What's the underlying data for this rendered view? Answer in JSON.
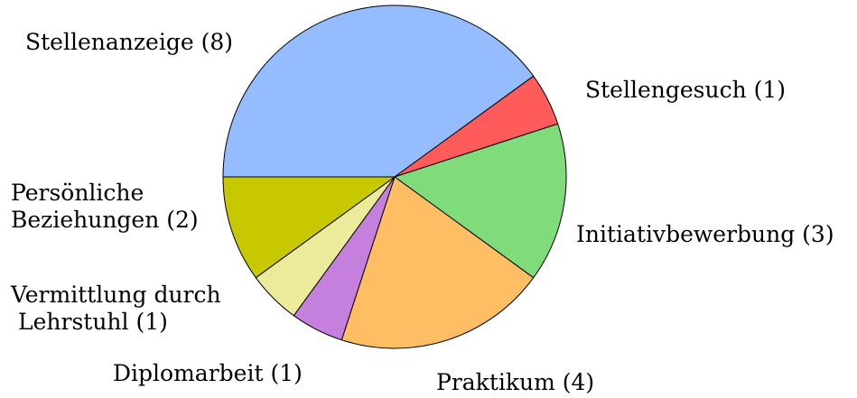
{
  "chart_data": {
    "type": "pie",
    "value_labels": [
      "Stellenanzeige (8)",
      "Stellengesuch (1)",
      "Initiativbewerbung (3)",
      "Praktikum (4)",
      "Diplomarbeit (1)",
      "Vermittlung durch\nLehrstuhl (1)",
      "Persönliche\nBeziehungen (2)"
    ],
    "values": [
      8,
      1,
      3,
      4,
      1,
      1,
      2
    ],
    "colors": [
      "#94bcff",
      "#ff5b5b",
      "#80dc7a",
      "#ffbe63",
      "#c57fdc",
      "#ebeb9b",
      "#c8c800"
    ]
  }
}
